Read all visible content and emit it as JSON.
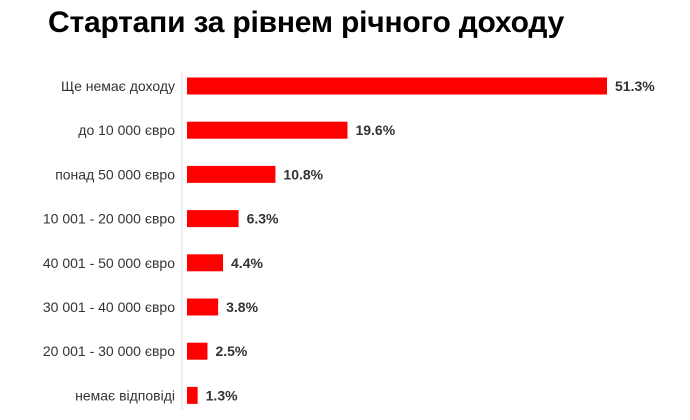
{
  "chart_data": {
    "type": "bar",
    "orientation": "horizontal",
    "title": "Стартапи за рівнем річного доходу",
    "categories": [
      "Ще немає доходу",
      "до 10 000 євро",
      "понад 50 000 євро",
      "10 001 - 20 000 євро",
      "40 001 - 50 000 євро",
      "30 001 - 40 000 євро",
      "20 001 - 30 000 євро",
      "немає відповіді"
    ],
    "values": [
      51.3,
      19.6,
      10.8,
      6.3,
      4.4,
      3.8,
      2.5,
      1.3
    ],
    "value_labels": [
      "51.3%",
      "19.6%",
      "10.8%",
      "6.3%",
      "4.4%",
      "3.8%",
      "2.5%",
      "1.3%"
    ],
    "xlim": [
      0,
      51.3
    ],
    "grid": false,
    "legend": "none",
    "bar_color": "#ff0000"
  }
}
